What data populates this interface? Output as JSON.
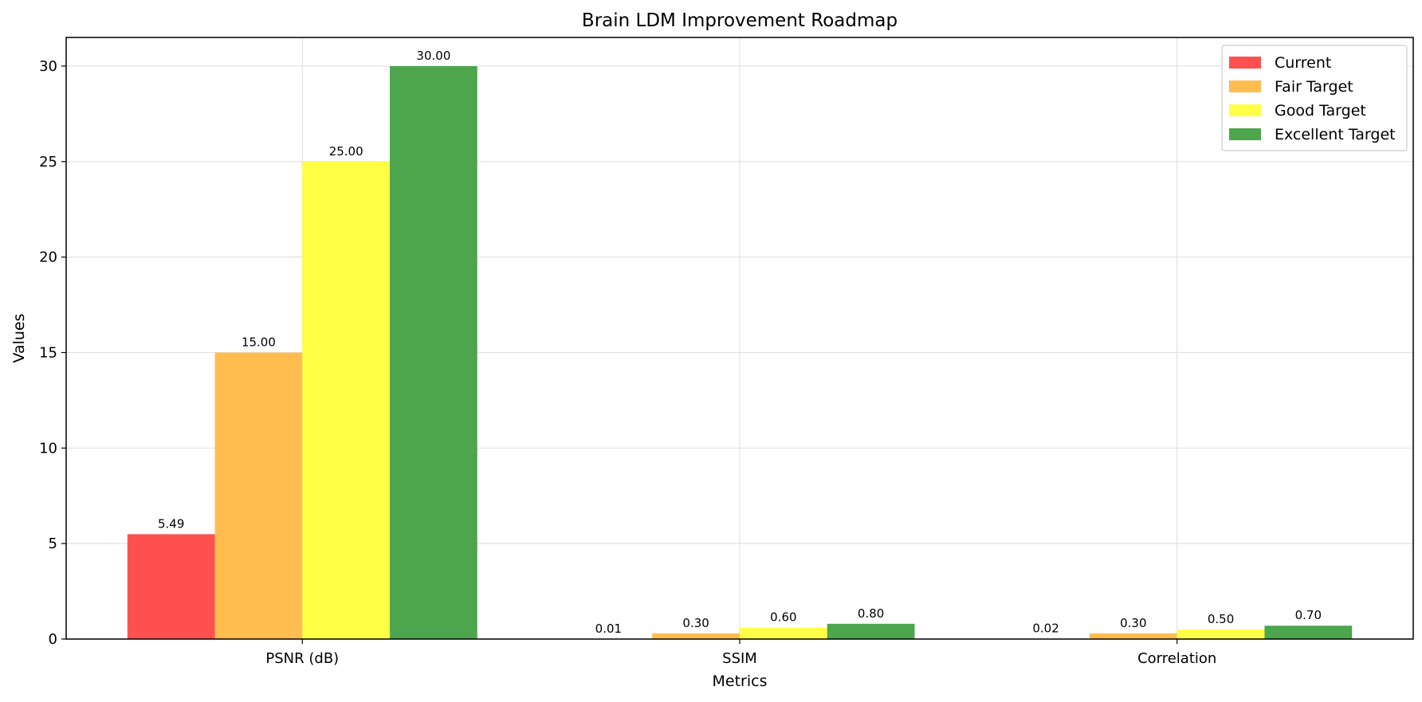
{
  "chart_data": {
    "type": "bar",
    "title": "Brain LDM Improvement Roadmap",
    "xlabel": "Metrics",
    "ylabel": "Values",
    "categories": [
      "PSNR (dB)",
      "SSIM",
      "Correlation"
    ],
    "ylim": [
      0,
      31.5
    ],
    "yticks": [
      0,
      5,
      10,
      15,
      20,
      25,
      30
    ],
    "grid": true,
    "legend_position": "top-right",
    "series": [
      {
        "name": "Current",
        "color": "#ff5050",
        "values": [
          5.49,
          0.01,
          0.02
        ],
        "labels": [
          "5.49",
          "0.01",
          "0.02"
        ]
      },
      {
        "name": "Fair Target",
        "color": "#ffbd50",
        "values": [
          15.0,
          0.3,
          0.3
        ],
        "labels": [
          "15.00",
          "0.30",
          "0.30"
        ]
      },
      {
        "name": "Good Target",
        "color": "#ffff46",
        "values": [
          25.0,
          0.6,
          0.5
        ],
        "labels": [
          "25.00",
          "0.60",
          "0.50"
        ]
      },
      {
        "name": "Excellent Target",
        "color": "#4da64d",
        "values": [
          30.0,
          0.8,
          0.7
        ],
        "labels": [
          "30.00",
          "0.80",
          "0.70"
        ]
      }
    ]
  }
}
